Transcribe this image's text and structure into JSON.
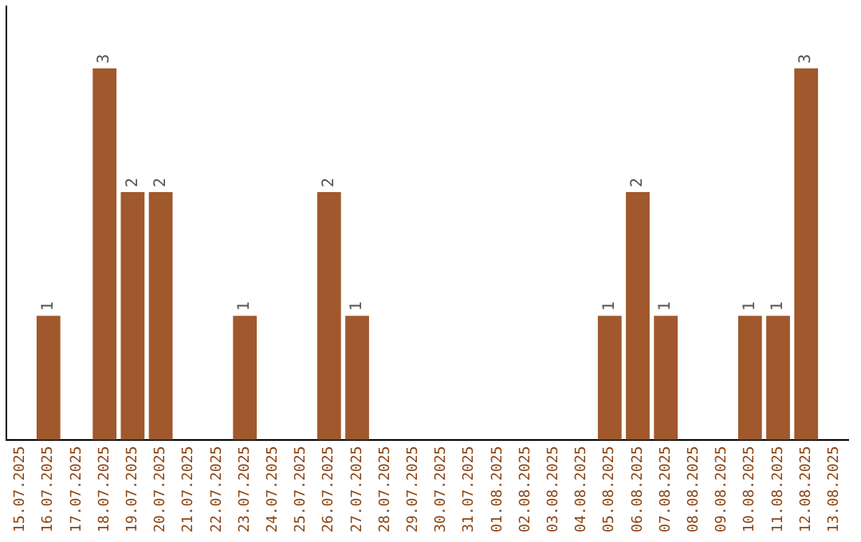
{
  "chart_data": {
    "type": "bar",
    "categories": [
      "15.07.2025",
      "16.07.2025",
      "17.07.2025",
      "18.07.2025",
      "19.07.2025",
      "20.07.2025",
      "21.07.2025",
      "22.07.2025",
      "23.07.2025",
      "24.07.2025",
      "25.07.2025",
      "26.07.2025",
      "27.07.2025",
      "28.07.2025",
      "29.07.2025",
      "30.07.2025",
      "31.07.2025",
      "01.08.2025",
      "02.08.2025",
      "03.08.2025",
      "04.08.2025",
      "05.08.2025",
      "06.08.2025",
      "07.08.2025",
      "08.08.2025",
      "09.08.2025",
      "10.08.2025",
      "11.08.2025",
      "12.08.2025",
      "13.08.2025"
    ],
    "values": [
      0,
      1,
      0,
      3,
      2,
      2,
      0,
      0,
      1,
      0,
      0,
      2,
      1,
      0,
      0,
      0,
      0,
      0,
      0,
      0,
      0,
      1,
      2,
      1,
      0,
      0,
      1,
      1,
      3,
      0
    ],
    "value_labels": [
      null,
      "1",
      null,
      "3",
      "2",
      "2",
      null,
      null,
      "1",
      null,
      null,
      "2",
      "1",
      null,
      null,
      null,
      null,
      null,
      null,
      null,
      null,
      "1",
      "2",
      "1",
      null,
      null,
      "1",
      "1",
      "3",
      null
    ],
    "color": "#a0582c",
    "grid": false,
    "legend": false,
    "tick_labels": "x"
  }
}
